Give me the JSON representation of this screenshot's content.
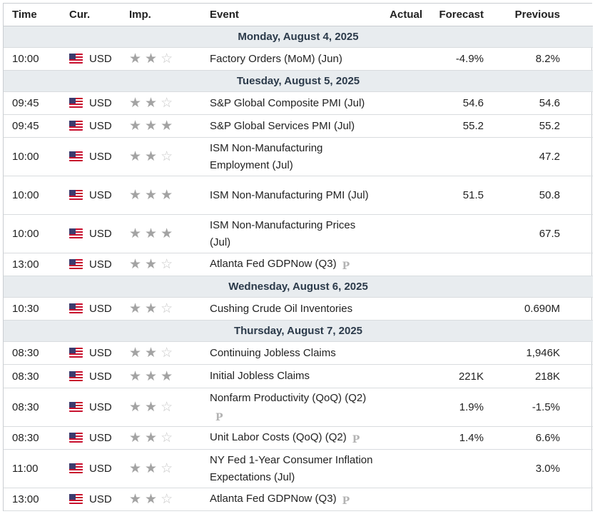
{
  "headers": {
    "time": "Time",
    "currency": "Cur.",
    "importance": "Imp.",
    "event": "Event",
    "actual": "Actual",
    "forecast": "Forecast",
    "previous": "Previous"
  },
  "colors": {
    "date_row_bg": "#e8ecef",
    "star_filled": "#a3a3a3",
    "star_empty": "#c8c8c8"
  },
  "days": [
    {
      "date": "Monday, August 4, 2025",
      "events": [
        {
          "time": "10:00",
          "currency": "USD",
          "stars": 2,
          "event": "Factory Orders (MoM) (Jun)",
          "prelim": false,
          "actual": "",
          "forecast": "-4.9%",
          "previous": "8.2%",
          "rows": 1
        }
      ]
    },
    {
      "date": "Tuesday, August 5, 2025",
      "events": [
        {
          "time": "09:45",
          "currency": "USD",
          "stars": 2,
          "event": "S&P Global Composite PMI (Jul)",
          "prelim": false,
          "actual": "",
          "forecast": "54.6",
          "previous": "54.6",
          "rows": 1
        },
        {
          "time": "09:45",
          "currency": "USD",
          "stars": 3,
          "event": "S&P Global Services PMI (Jul)",
          "prelim": false,
          "actual": "",
          "forecast": "55.2",
          "previous": "55.2",
          "rows": 1
        },
        {
          "time": "10:00",
          "currency": "USD",
          "stars": 2,
          "event": "ISM Non-Manufacturing Employment (Jul)",
          "prelim": false,
          "actual": "",
          "forecast": "",
          "previous": "47.2",
          "rows": 2
        },
        {
          "time": "10:00",
          "currency": "USD",
          "stars": 3,
          "event": "ISM Non-Manufacturing PMI (Jul)",
          "prelim": false,
          "actual": "",
          "forecast": "51.5",
          "previous": "50.8",
          "rows": 2
        },
        {
          "time": "10:00",
          "currency": "USD",
          "stars": 3,
          "event": "ISM Non-Manufacturing Prices (Jul)",
          "prelim": false,
          "actual": "",
          "forecast": "",
          "previous": "67.5",
          "rows": 2
        },
        {
          "time": "13:00",
          "currency": "USD",
          "stars": 2,
          "event": "Atlanta Fed GDPNow (Q3)",
          "prelim": true,
          "actual": "",
          "forecast": "",
          "previous": "",
          "rows": 1
        }
      ]
    },
    {
      "date": "Wednesday, August 6, 2025",
      "events": [
        {
          "time": "10:30",
          "currency": "USD",
          "stars": 2,
          "event": "Cushing Crude Oil Inventories",
          "prelim": false,
          "actual": "",
          "forecast": "",
          "previous": "0.690M",
          "rows": 1
        }
      ]
    },
    {
      "date": "Thursday, August 7, 2025",
      "events": [
        {
          "time": "08:30",
          "currency": "USD",
          "stars": 2,
          "event": "Continuing Jobless Claims",
          "prelim": false,
          "actual": "",
          "forecast": "",
          "previous": "1,946K",
          "rows": 1
        },
        {
          "time": "08:30",
          "currency": "USD",
          "stars": 3,
          "event": "Initial Jobless Claims",
          "prelim": false,
          "actual": "",
          "forecast": "221K",
          "previous": "218K",
          "rows": 1
        },
        {
          "time": "08:30",
          "currency": "USD",
          "stars": 2,
          "event": "Nonfarm Productivity (QoQ) (Q2)",
          "prelim": true,
          "actual": "",
          "forecast": "1.9%",
          "previous": "-1.5%",
          "rows": 2
        },
        {
          "time": "08:30",
          "currency": "USD",
          "stars": 2,
          "event": "Unit Labor Costs (QoQ) (Q2)",
          "prelim": true,
          "actual": "",
          "forecast": "1.4%",
          "previous": "6.6%",
          "rows": 1
        },
        {
          "time": "11:00",
          "currency": "USD",
          "stars": 2,
          "event": "NY Fed 1-Year Consumer Inflation Expectations (Jul)",
          "prelim": false,
          "actual": "",
          "forecast": "",
          "previous": "3.0%",
          "rows": 2
        },
        {
          "time": "13:00",
          "currency": "USD",
          "stars": 2,
          "event": "Atlanta Fed GDPNow (Q3)",
          "prelim": true,
          "actual": "",
          "forecast": "",
          "previous": "",
          "rows": 1
        }
      ]
    }
  ],
  "prelim_marker": "P"
}
